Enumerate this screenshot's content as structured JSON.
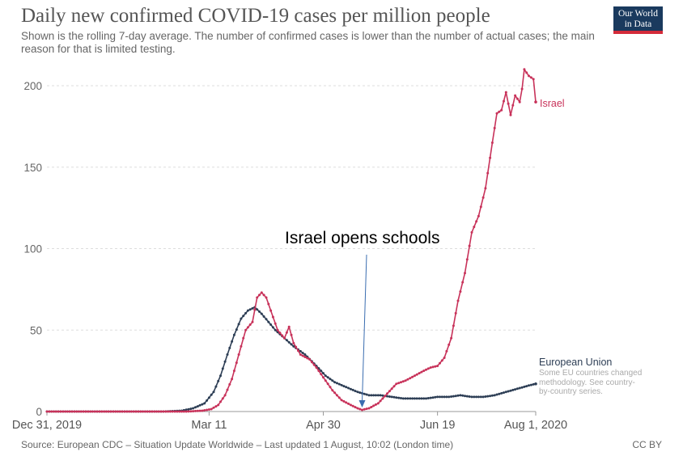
{
  "header": {
    "title": "Daily new confirmed COVID-19 cases per million people",
    "subtitle": "Shown is the rolling 7-day average. The number of confirmed cases is lower than the number of actual cases; the main reason for that is limited testing.",
    "logo_line1": "Our World",
    "logo_line2": "in Data"
  },
  "footer": {
    "source": "Source: European CDC – Situation Update Worldwide – Last updated 1 August, 10:02 (London time)",
    "license": "CC BY"
  },
  "annotation": {
    "text": "Israel opens schools",
    "date": "2020-05-17",
    "value": 1
  },
  "colors": {
    "israel": "#c8325a",
    "eu": "#2d3e55"
  },
  "chart_data": {
    "type": "line",
    "x_type": "date",
    "xlim": [
      "2019-12-31",
      "2020-08-01"
    ],
    "ylim": [
      0,
      210
    ],
    "yticks": [
      0,
      50,
      100,
      150,
      200
    ],
    "xticks": [
      {
        "date": "2019-12-31",
        "label": "Dec 31, 2019"
      },
      {
        "date": "2020-03-11",
        "label": "Mar 11"
      },
      {
        "date": "2020-04-30",
        "label": "Apr 30"
      },
      {
        "date": "2020-06-19",
        "label": "Jun 19"
      },
      {
        "date": "2020-08-01",
        "label": "Aug 1, 2020"
      }
    ],
    "grid": "horizontal",
    "series": [
      {
        "name": "Israel",
        "label": "Israel",
        "points": [
          [
            "2019-12-31",
            0
          ],
          [
            "2020-02-20",
            0
          ],
          [
            "2020-03-01",
            0
          ],
          [
            "2020-03-08",
            0.5
          ],
          [
            "2020-03-12",
            1.5
          ],
          [
            "2020-03-15",
            4
          ],
          [
            "2020-03-18",
            10
          ],
          [
            "2020-03-21",
            20
          ],
          [
            "2020-03-24",
            35
          ],
          [
            "2020-03-27",
            50
          ],
          [
            "2020-03-30",
            55
          ],
          [
            "2020-04-01",
            70
          ],
          [
            "2020-04-03",
            73
          ],
          [
            "2020-04-05",
            70
          ],
          [
            "2020-04-07",
            62
          ],
          [
            "2020-04-10",
            50
          ],
          [
            "2020-04-13",
            45
          ],
          [
            "2020-04-15",
            52
          ],
          [
            "2020-04-17",
            42
          ],
          [
            "2020-04-20",
            35
          ],
          [
            "2020-04-24",
            32
          ],
          [
            "2020-04-27",
            27
          ],
          [
            "2020-04-30",
            21
          ],
          [
            "2020-05-04",
            13
          ],
          [
            "2020-05-08",
            7
          ],
          [
            "2020-05-12",
            4
          ],
          [
            "2020-05-15",
            2
          ],
          [
            "2020-05-17",
            1
          ],
          [
            "2020-05-20",
            2
          ],
          [
            "2020-05-24",
            5
          ],
          [
            "2020-05-28",
            11
          ],
          [
            "2020-06-01",
            17
          ],
          [
            "2020-06-05",
            19
          ],
          [
            "2020-06-09",
            22
          ],
          [
            "2020-06-13",
            25
          ],
          [
            "2020-06-16",
            27
          ],
          [
            "2020-06-19",
            28
          ],
          [
            "2020-06-22",
            33
          ],
          [
            "2020-06-25",
            45
          ],
          [
            "2020-06-28",
            68
          ],
          [
            "2020-07-01",
            85
          ],
          [
            "2020-07-04",
            110
          ],
          [
            "2020-07-07",
            120
          ],
          [
            "2020-07-10",
            137
          ],
          [
            "2020-07-13",
            165
          ],
          [
            "2020-07-15",
            183
          ],
          [
            "2020-07-17",
            185
          ],
          [
            "2020-07-19",
            196
          ],
          [
            "2020-07-21",
            182
          ],
          [
            "2020-07-23",
            194
          ],
          [
            "2020-07-25",
            190
          ],
          [
            "2020-07-26",
            198
          ],
          [
            "2020-07-27",
            210
          ],
          [
            "2020-07-29",
            206
          ],
          [
            "2020-07-31",
            204
          ],
          [
            "2020-08-01",
            190
          ]
        ]
      },
      {
        "name": "European Union",
        "label": "European Union",
        "points": [
          [
            "2019-12-31",
            0
          ],
          [
            "2020-02-20",
            0
          ],
          [
            "2020-02-28",
            0.5
          ],
          [
            "2020-03-04",
            2
          ],
          [
            "2020-03-09",
            5
          ],
          [
            "2020-03-13",
            12
          ],
          [
            "2020-03-16",
            22
          ],
          [
            "2020-03-19",
            35
          ],
          [
            "2020-03-22",
            47
          ],
          [
            "2020-03-25",
            57
          ],
          [
            "2020-03-28",
            62
          ],
          [
            "2020-03-31",
            64
          ],
          [
            "2020-04-03",
            60
          ],
          [
            "2020-04-06",
            55
          ],
          [
            "2020-04-09",
            50
          ],
          [
            "2020-04-13",
            45
          ],
          [
            "2020-04-17",
            40
          ],
          [
            "2020-04-22",
            35
          ],
          [
            "2020-04-27",
            28
          ],
          [
            "2020-05-01",
            22
          ],
          [
            "2020-05-05",
            18
          ],
          [
            "2020-05-10",
            15
          ],
          [
            "2020-05-15",
            12
          ],
          [
            "2020-05-20",
            10
          ],
          [
            "2020-05-25",
            10
          ],
          [
            "2020-05-30",
            9
          ],
          [
            "2020-06-04",
            8
          ],
          [
            "2020-06-09",
            8
          ],
          [
            "2020-06-14",
            8
          ],
          [
            "2020-06-19",
            9
          ],
          [
            "2020-06-24",
            9
          ],
          [
            "2020-06-29",
            10
          ],
          [
            "2020-07-04",
            9
          ],
          [
            "2020-07-09",
            9
          ],
          [
            "2020-07-14",
            10
          ],
          [
            "2020-07-19",
            12
          ],
          [
            "2020-07-24",
            14
          ],
          [
            "2020-07-29",
            16
          ],
          [
            "2020-08-01",
            17
          ]
        ],
        "note": "Some EU countries changed methodology. See country-by-country series."
      }
    ]
  }
}
